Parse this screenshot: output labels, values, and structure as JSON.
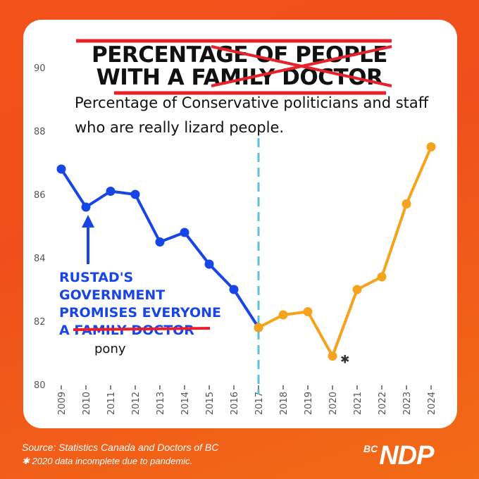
{
  "title": {
    "line1": "PERCENTAGE OF PEOPLE",
    "line2": "WITH A FAMILY DOCTOR"
  },
  "subtitle": {
    "line1": "Percentage of Conservative politicians and staff",
    "line2": "who are really lizard people."
  },
  "annotation": {
    "line1": "RUSTAD'S",
    "line2": "GOVERNMENT",
    "line3": "PROMISES EVERYONE",
    "line4_prefix": "A ",
    "line4_struck": "FAMILY DOCTOR",
    "replacement": "pony"
  },
  "footer": {
    "source": "Source: Statistics Canada and Doctors of BC",
    "footnote": "✱ 2020 data incomplete due to pandemic.",
    "logo_bc": "BC",
    "logo_name": "NDP"
  },
  "colors": {
    "background": "#f2531a",
    "blue_series": "#1846e6",
    "orange_series": "#f5a31c",
    "divider": "#5bc0d8",
    "strike": "#e8202a"
  },
  "chart_data": {
    "type": "line",
    "x": [
      2009,
      2010,
      2011,
      2012,
      2013,
      2014,
      2015,
      2016,
      2017,
      2018,
      2019,
      2020,
      2021,
      2022,
      2023,
      2024
    ],
    "y_ticks": [
      80,
      82,
      84,
      86,
      88,
      90
    ],
    "ylim": [
      80,
      90
    ],
    "x_tick_labels": [
      "2009",
      "2010",
      "2011",
      "2012",
      "2013",
      "2014",
      "2015",
      "2016",
      "2017",
      "2018",
      "2019",
      "2020",
      "2021",
      "2022",
      "2023",
      "2024"
    ],
    "series": [
      {
        "color": "blue",
        "x": [
          2009,
          2010,
          2011,
          2012,
          2013,
          2014,
          2015,
          2016,
          2017
        ],
        "values": [
          86.8,
          85.6,
          86.1,
          86.0,
          84.5,
          84.8,
          83.8,
          83.0,
          81.8
        ]
      },
      {
        "color": "orange",
        "x": [
          2017,
          2018,
          2019,
          2020,
          2021,
          2022,
          2023,
          2024
        ],
        "values": [
          81.8,
          82.2,
          82.3,
          80.9,
          83.0,
          83.4,
          85.7,
          87.5
        ]
      }
    ],
    "divider_at": 2017,
    "footnote_marker": {
      "x": 2020,
      "label": "✱"
    },
    "grid": false
  }
}
